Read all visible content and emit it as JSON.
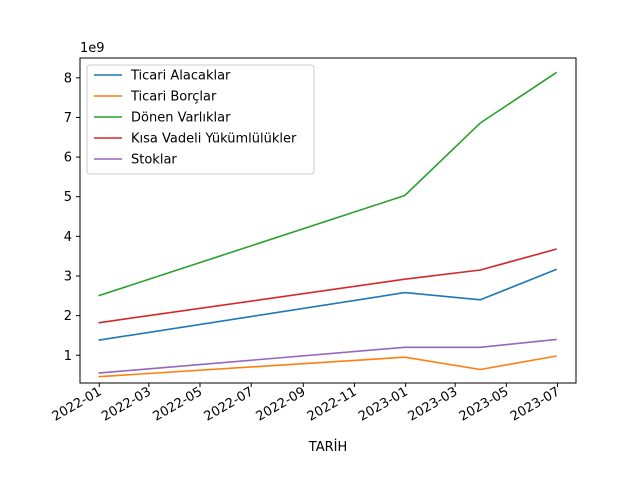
{
  "chart_data": {
    "type": "line",
    "title": "",
    "xlabel": "TARİH",
    "ylabel": "",
    "y_offset_label": "1e9",
    "y_scale": 1000000000,
    "ylim": [
      0.3,
      8.5
    ],
    "xlim": [
      "2021-12-09",
      "2023-07-23"
    ],
    "x_ticks": [
      "2022-01",
      "2022-03",
      "2022-05",
      "2022-07",
      "2022-09",
      "2022-11",
      "2023-01",
      "2023-03",
      "2023-05",
      "2023-07"
    ],
    "y_ticks": [
      1,
      2,
      3,
      4,
      5,
      6,
      7,
      8
    ],
    "x": [
      "2021-12-31",
      "2022-12-31",
      "2023-03-31",
      "2023-06-30"
    ],
    "legend_position": "upper-left",
    "grid": false,
    "series": [
      {
        "name": "Ticari Alacaklar",
        "color": "#1f77b4",
        "values": [
          1.38,
          2.58,
          2.4,
          3.17
        ]
      },
      {
        "name": "Ticari Borçlar",
        "color": "#ff7f0e",
        "values": [
          0.46,
          0.95,
          0.64,
          0.98
        ]
      },
      {
        "name": "Dönen Varlıklar",
        "color": "#2ca02c",
        "values": [
          2.5,
          5.03,
          6.86,
          8.14
        ]
      },
      {
        "name": "Kısa Vadeli Yükümlülükler",
        "color": "#d62728",
        "values": [
          1.82,
          2.92,
          3.15,
          3.68
        ]
      },
      {
        "name": "Stoklar",
        "color": "#9467bd",
        "values": [
          0.55,
          1.2,
          1.2,
          1.4
        ]
      }
    ]
  }
}
